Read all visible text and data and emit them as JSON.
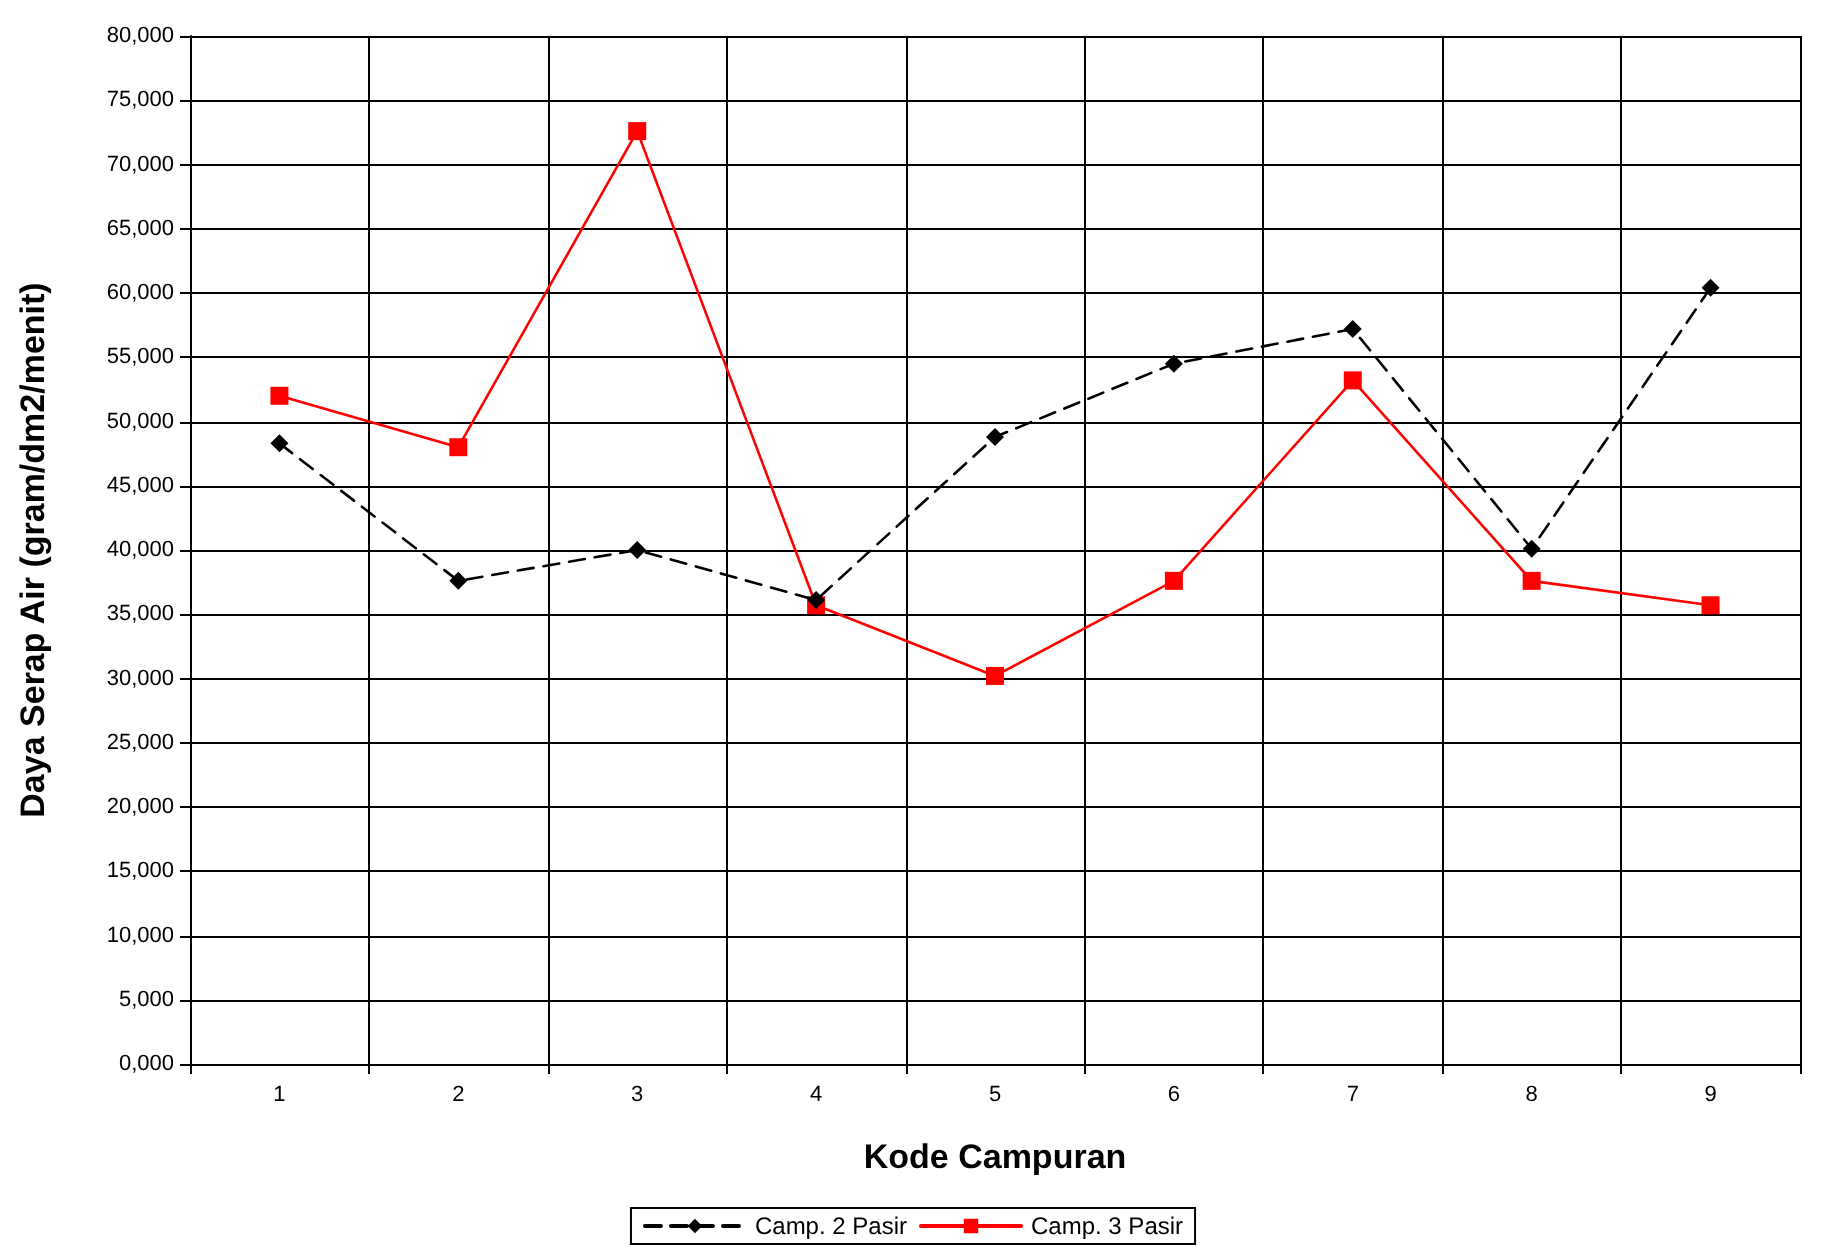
{
  "chart_data": {
    "type": "line",
    "xlabel": "Kode Campuran",
    "ylabel": "Daya Serap Air (gram/dm2/menit)",
    "categories": [
      "1",
      "2",
      "3",
      "4",
      "5",
      "6",
      "7",
      "8",
      "9"
    ],
    "series": [
      {
        "name": "Camp. 2 Pasir",
        "color": "#000000",
        "marker": "diamond",
        "line_style": "dashed",
        "values": [
          48300,
          37600,
          40000,
          36100,
          48800,
          54500,
          57200,
          40100,
          60400
        ]
      },
      {
        "name": "Camp. 3 Pasir",
        "color": "#ff0000",
        "marker": "square",
        "line_style": "solid",
        "values": [
          52000,
          48000,
          72600,
          35700,
          30200,
          37600,
          53200,
          37600,
          35700
        ]
      }
    ],
    "ylim": [
      0,
      80000
    ],
    "yticks": [
      {
        "value": 0,
        "label": "0,000"
      },
      {
        "value": 5000,
        "label": "5,000"
      },
      {
        "value": 10000,
        "label": "10,000"
      },
      {
        "value": 15000,
        "label": "15,000"
      },
      {
        "value": 20000,
        "label": "20,000"
      },
      {
        "value": 25000,
        "label": "25,000"
      },
      {
        "value": 30000,
        "label": "30,000"
      },
      {
        "value": 35000,
        "label": "35,000"
      },
      {
        "value": 40000,
        "label": "40,000"
      },
      {
        "value": 45000,
        "label": "45,000"
      },
      {
        "value": 50000,
        "label": "50,000"
      },
      {
        "value": 55000,
        "label": "55,000"
      },
      {
        "value": 60000,
        "label": "60,000"
      },
      {
        "value": 65000,
        "label": "65,000"
      },
      {
        "value": 70000,
        "label": "70,000"
      },
      {
        "value": 75000,
        "label": "75,000"
      },
      {
        "value": 80000,
        "label": "80,000"
      }
    ],
    "grid": true,
    "legend": "bottom"
  }
}
